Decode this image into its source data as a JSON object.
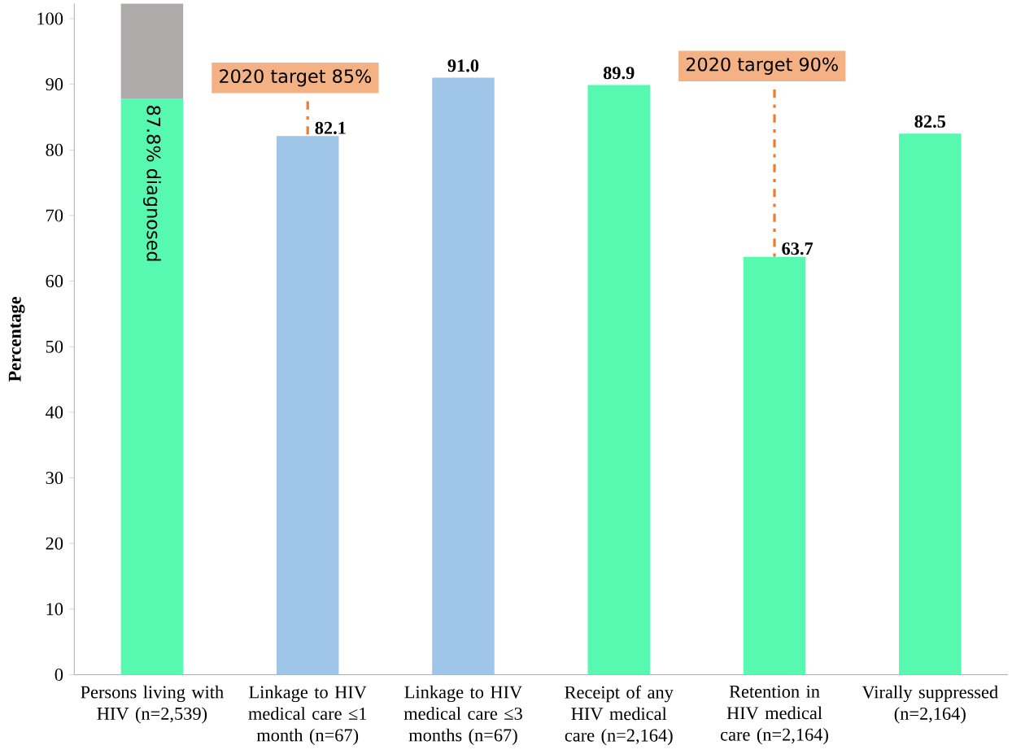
{
  "chart_data": {
    "type": "bar",
    "stacked": true,
    "ylabel": "Percentage",
    "categories": [
      "Persons living with HIV (n=2,539)",
      "Linkage to HIV medical care ≤1 month (n=67)",
      "Linkage to HIV medical care ≤3 months (n=67)",
      "Receipt of any HIV medical care (n=2,164)",
      "Retention in HIV medical care (n=2,164)",
      "Virally suppressed (n=2,164)"
    ],
    "series": [
      {
        "colors": [
          "#57f9b0",
          "#9fc5e8",
          "#9fc5e8",
          "#57f9b0",
          "#57f9b0",
          "#57f9b0"
        ],
        "values": [
          87.8,
          82.1,
          91.0,
          89.9,
          63.7,
          82.5
        ],
        "value_labels": [
          null,
          "82.1",
          "91.0",
          "89.9",
          "63.7",
          "82.5"
        ]
      },
      {
        "color": "#aeaaaa",
        "values": [
          14.5,
          null,
          null,
          null,
          null,
          null
        ]
      }
    ],
    "ylim": [
      0,
      102.3
    ],
    "yticks": [
      0,
      10,
      20,
      30,
      40,
      50,
      60,
      70,
      80,
      90,
      100
    ],
    "annotations": [
      {
        "text": "87.8% diagnosed",
        "x": "Persons living with HIV (n=2,539)",
        "y": 87.8
      },
      {
        "text": "2020 target 85%",
        "x": "Linkage to HIV medical care ≤1 month (n=67)",
        "y": 82.1
      },
      {
        "text": "2020 target 90%",
        "x": "Retention in HIV medical care (n=2,164)",
        "y": 63.7
      }
    ]
  }
}
